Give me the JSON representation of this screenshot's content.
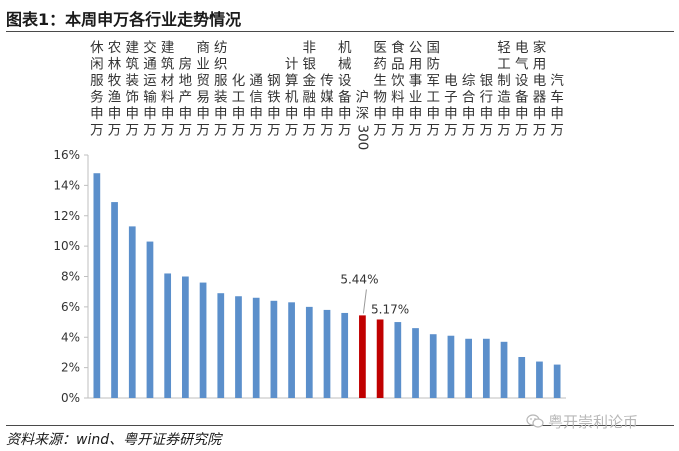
{
  "header": {
    "title": "图表1：本周申万各行业走势情况"
  },
  "footer": {
    "source": "资料来源：wind、粤开证券研究院",
    "watermark": "粤开崇利论币",
    "watermark_icon": "wechat-icon"
  },
  "chart_data": {
    "type": "bar",
    "title": "",
    "xlabel": "",
    "ylabel": "",
    "categories": [
      "休闲服务(申万)",
      "农林牧渔(申万)",
      "建筑装饰(申万)",
      "交通运输(申万)",
      "建筑材料(申万)",
      "房地产(申万)",
      "商业贸易(申万)",
      "纺织服装(申万)",
      "化工(申万)",
      "通信(申万)",
      "钢铁(申万)",
      "计算机(申万)",
      "非银金融(申万)",
      "传媒(申万)",
      "机械设备(申万)",
      "沪深300",
      "医药生物(申万)",
      "食品饮料(申万)",
      "公用事业(申万)",
      "国防军工(申万)",
      "电子(申万)",
      "综合(申万)",
      "银行(申万)",
      "轻工制造(申万)",
      "电气设备(申万)",
      "家用电器(申万)",
      "汽车(申万)"
    ],
    "category_columns": [
      [
        "休",
        "闲",
        "服",
        "务",
        "申",
        "万"
      ],
      [
        "农",
        "林",
        "牧",
        "渔",
        "申",
        "万"
      ],
      [
        "建",
        "筑",
        "装",
        "饰",
        "申",
        "万"
      ],
      [
        "交",
        "通",
        "运",
        "输",
        "申",
        "万"
      ],
      [
        "建",
        "筑",
        "材",
        "料",
        "申",
        "万"
      ],
      [
        "房",
        "地",
        "产",
        "申",
        "万"
      ],
      [
        "商",
        "业",
        "贸",
        "易",
        "申",
        "万"
      ],
      [
        "纺",
        "织",
        "服",
        "装",
        "申",
        "万"
      ],
      [
        "化",
        "工",
        "申",
        "万"
      ],
      [
        "通",
        "信",
        "申",
        "万"
      ],
      [
        "钢",
        "铁",
        "申",
        "万"
      ],
      [
        "计",
        "算",
        "机",
        "申",
        "万"
      ],
      [
        "非",
        "银",
        "金",
        "融",
        "申",
        "万"
      ],
      [
        "传",
        "媒",
        "申",
        "万"
      ],
      [
        "机",
        "械",
        "设",
        "备",
        "申",
        "万"
      ],
      [
        "沪",
        "深",
        "300"
      ],
      [
        "医",
        "药",
        "生",
        "物",
        "申",
        "万"
      ],
      [
        "食",
        "品",
        "饮",
        "料",
        "申",
        "万"
      ],
      [
        "公",
        "用",
        "事",
        "业",
        "申",
        "万"
      ],
      [
        "国",
        "防",
        "军",
        "工",
        "申",
        "万"
      ],
      [
        "电",
        "子",
        "申",
        "万"
      ],
      [
        "综",
        "合",
        "申",
        "万"
      ],
      [
        "银",
        "行",
        "申",
        "万"
      ],
      [
        "轻",
        "工",
        "制",
        "造",
        "申",
        "万"
      ],
      [
        "电",
        "气",
        "设",
        "备",
        "申",
        "万"
      ],
      [
        "家",
        "用",
        "电",
        "器",
        "申",
        "万"
      ],
      [
        "汽",
        "车",
        "申",
        "万"
      ]
    ],
    "values": [
      14.8,
      12.9,
      11.3,
      10.3,
      8.2,
      8.0,
      7.6,
      6.9,
      6.7,
      6.6,
      6.4,
      6.3,
      6.0,
      5.8,
      5.6,
      5.44,
      5.17,
      5.0,
      4.6,
      4.2,
      4.1,
      3.9,
      3.9,
      3.7,
      2.7,
      2.4,
      2.2
    ],
    "highlight": {
      "沪深300": "#C00000",
      "医药生物(申万)": "#C00000"
    },
    "data_labels": [
      {
        "category": "沪深300",
        "text": "5.44%"
      },
      {
        "category": "医药生物(申万)",
        "text": "5.17%"
      }
    ],
    "ylim": [
      0,
      16
    ],
    "y_ticks": [
      "0%",
      "2%",
      "4%",
      "6%",
      "8%",
      "10%",
      "12%",
      "14%",
      "16%"
    ],
    "bar_color": "#5B8FCB",
    "axis_color": "#BFBFBF",
    "grid": false,
    "legend": "none"
  }
}
